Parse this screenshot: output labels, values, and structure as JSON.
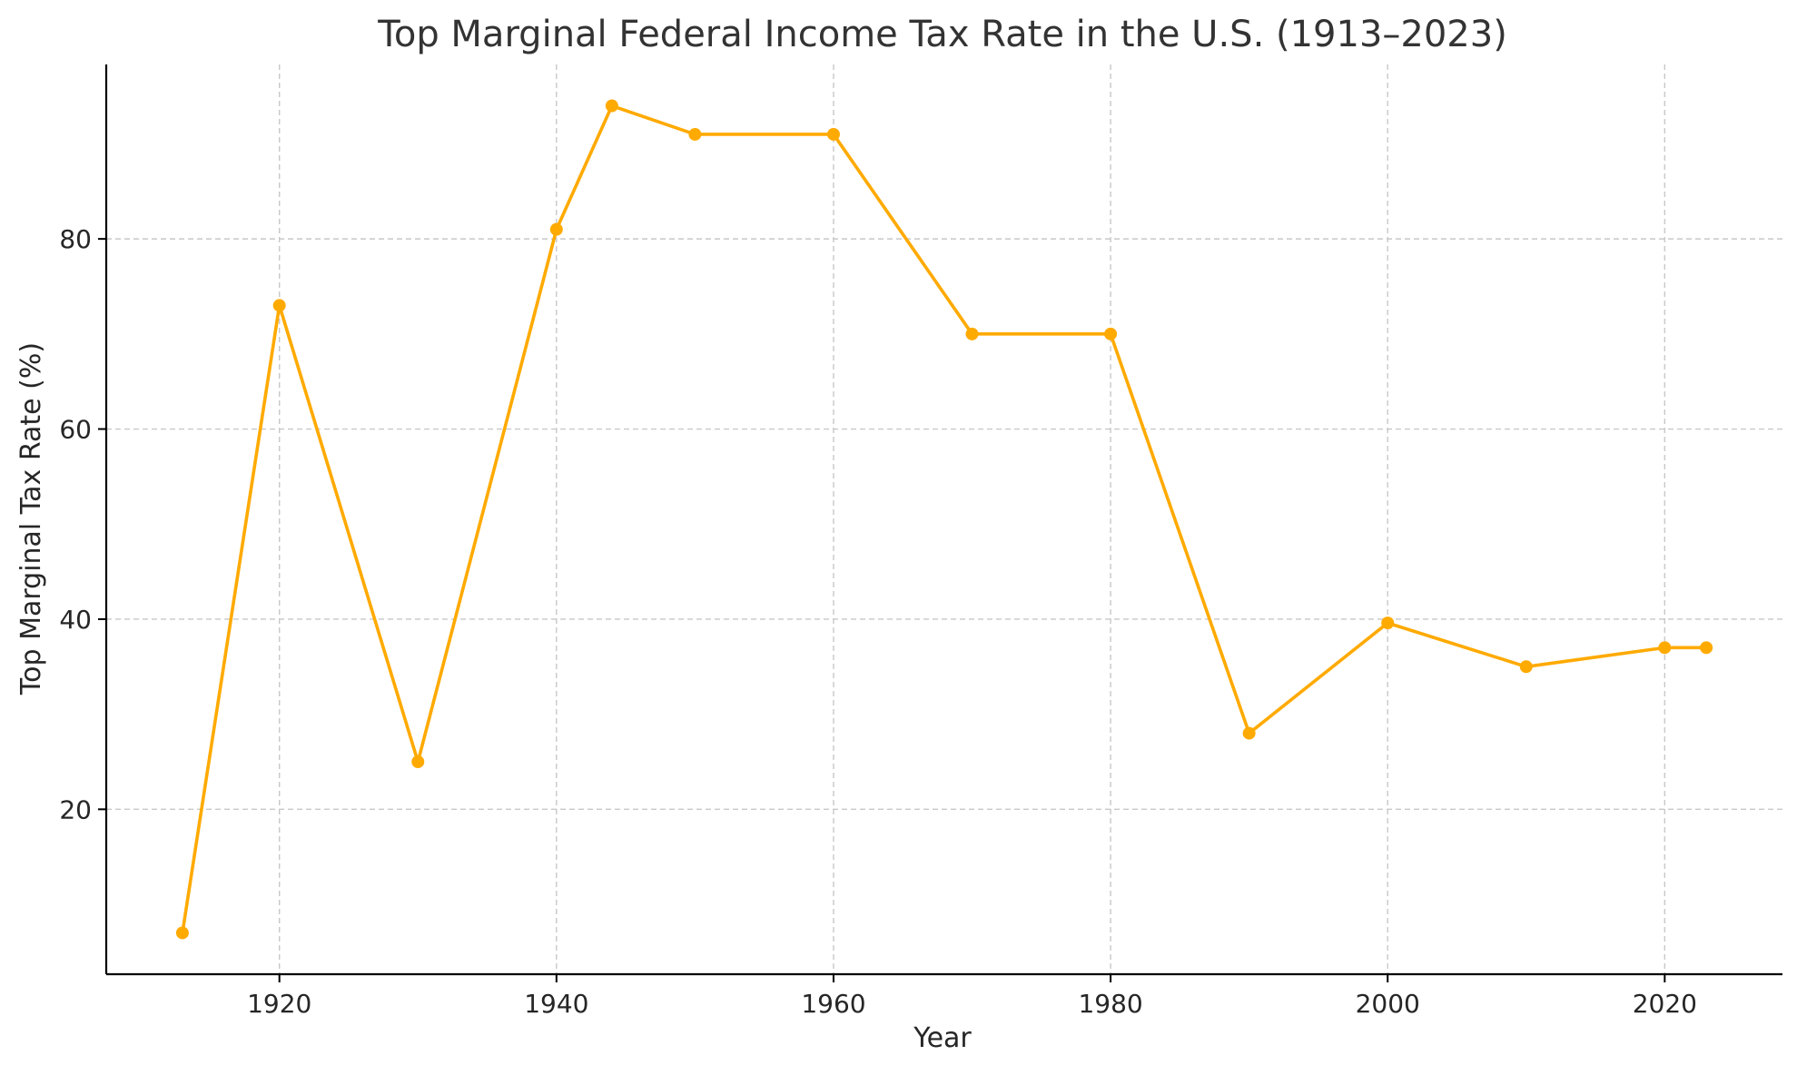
{
  "chart_data": {
    "type": "line",
    "title": "Top Marginal Federal Income Tax Rate in the U.S. (1913–2023)",
    "xlabel": "Year",
    "ylabel": "Top Marginal Tax Rate (%)",
    "xlim": [
      1907.5,
      2028.5
    ],
    "ylim": [
      2.65,
      98.35
    ],
    "x_ticks": [
      1920,
      1940,
      1960,
      1980,
      2000,
      2020
    ],
    "y_ticks": [
      20,
      40,
      60,
      80
    ],
    "grid": true,
    "legend": "none",
    "series": [
      {
        "color": "#FFAA00",
        "points": [
          {
            "x": 1913,
            "y": 7
          },
          {
            "x": 1920,
            "y": 73
          },
          {
            "x": 1930,
            "y": 25
          },
          {
            "x": 1940,
            "y": 81
          },
          {
            "x": 1944,
            "y": 94
          },
          {
            "x": 1950,
            "y": 91
          },
          {
            "x": 1960,
            "y": 91
          },
          {
            "x": 1970,
            "y": 70
          },
          {
            "x": 1980,
            "y": 70
          },
          {
            "x": 1990,
            "y": 28
          },
          {
            "x": 2000,
            "y": 39.6
          },
          {
            "x": 2010,
            "y": 35
          },
          {
            "x": 2020,
            "y": 37
          },
          {
            "x": 2023,
            "y": 37
          }
        ]
      }
    ]
  }
}
